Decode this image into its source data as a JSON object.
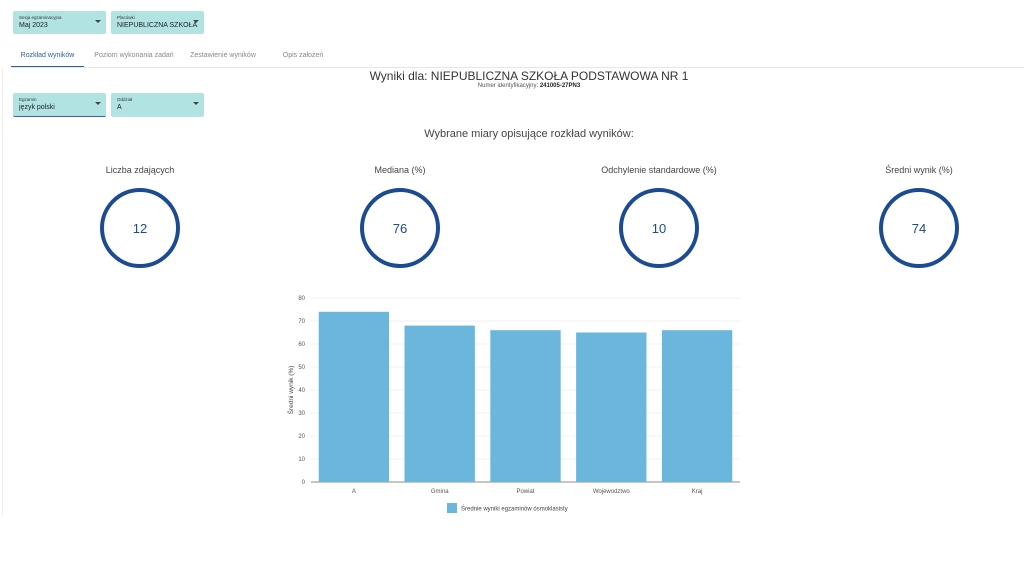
{
  "filters": {
    "session": {
      "label": "Sesja egzaminacyjna",
      "value": "Maj 2023"
    },
    "school": {
      "label": "Placówki",
      "value": "NIEPUBLICZNA SZKOŁA..."
    },
    "exam": {
      "label": "Egzamin",
      "value": "język polski"
    },
    "class": {
      "label": "Oddział",
      "value": "A"
    }
  },
  "tabs": [
    {
      "label": "Rozkład wyników",
      "active": true
    },
    {
      "label": "Poziom wykonania zadań",
      "active": false
    },
    {
      "label": "Zestawienie wyników",
      "active": false
    },
    {
      "label": "Opis założeń",
      "active": false
    }
  ],
  "header": {
    "title": "Wyniki dla: NIEPUBLICZNA SZKOŁA PODSTAWOWA NR 1",
    "id_label": "Numer identyfikacyjny:",
    "id_value": "241005-27PN3"
  },
  "metrics_title": "Wybrane miary opisujące rozkład wyników:",
  "metrics": [
    {
      "label": "Liczba zdających",
      "value": "12"
    },
    {
      "label": "Mediana (%)",
      "value": "76"
    },
    {
      "label": "Odchylenie standardowe (%)",
      "value": "10"
    },
    {
      "label": "Średni wynik (%)",
      "value": "74"
    }
  ],
  "colors": {
    "accent": "#2d5fa8",
    "ring": "#1b4b92",
    "bar": "#6ab6dc",
    "select_bg": "#b2e3e3"
  },
  "chart_data": {
    "type": "bar",
    "categories": [
      "A",
      "Gmina",
      "Powiat",
      "Wojewodztwo",
      "Kraj"
    ],
    "series": [
      {
        "name": "Średnie wyniki egzaminów ósmoklasisty",
        "values": [
          74,
          68,
          66,
          65,
          66
        ]
      }
    ],
    "ylabel": "Średni wynik (%)",
    "xlabel": "",
    "ylim": [
      0,
      80
    ],
    "yticks": [
      0,
      10,
      20,
      30,
      40,
      50,
      60,
      70,
      80
    ],
    "grid": true,
    "legend": "bottom"
  }
}
